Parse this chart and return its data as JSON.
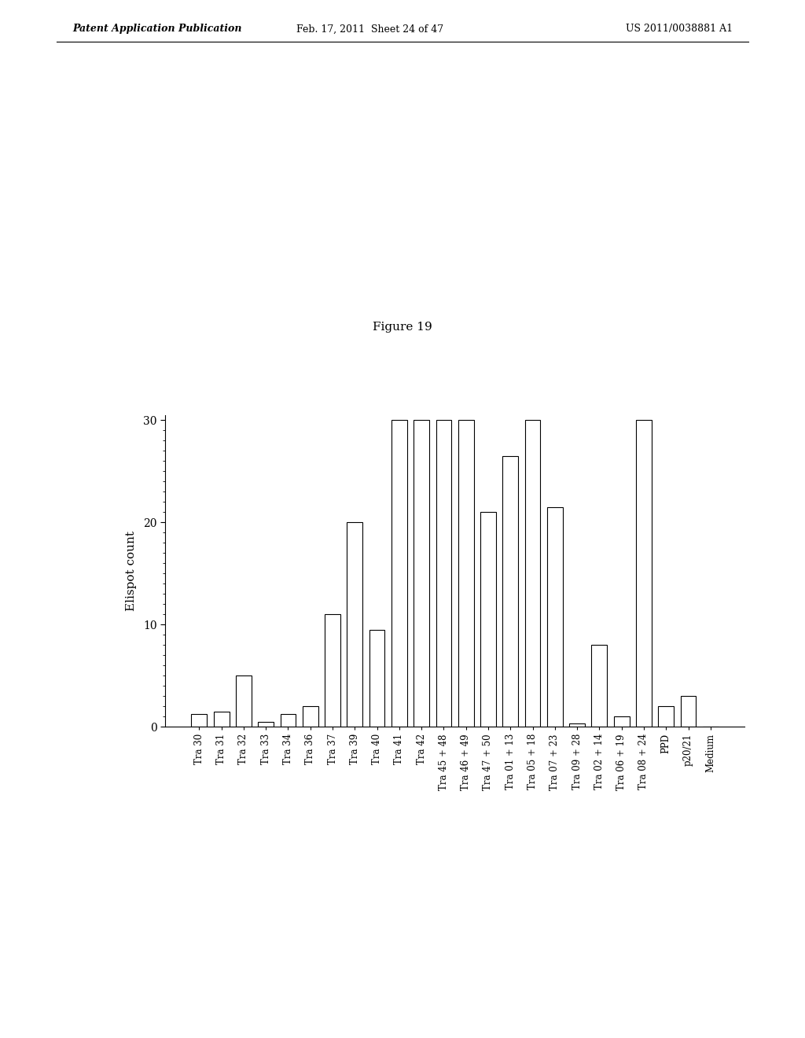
{
  "categories": [
    "Tra 30",
    "Tra 31",
    "Tra 32",
    "Tra 33",
    "Tra 34",
    "Tra 36",
    "Tra 37",
    "Tra 39",
    "Tra 40",
    "Tra 41",
    "Tra 42",
    "Tra 45 + 48",
    "Tra 46 + 49",
    "Tra 47 + 50",
    "Tra 01 + 13",
    "Tra 05 + 18",
    "Tra 07 + 23",
    "Tra 09 + 28",
    "Tra 02 + 14",
    "Tra 06 + 19",
    "Tra 08 + 24",
    "PPD",
    "p20/21",
    "Medium"
  ],
  "values": [
    1.2,
    1.5,
    5.0,
    0.5,
    1.2,
    2.0,
    11.0,
    20.0,
    9.5,
    30.0,
    30.0,
    30.0,
    30.0,
    21.0,
    26.5,
    30.0,
    21.5,
    0.3,
    8.0,
    1.0,
    30.0,
    2.0,
    3.0,
    0.0
  ],
  "ylabel": "Elispot count",
  "title": "Figure 19",
  "ylim": [
    0,
    30
  ],
  "yticks": [
    0,
    10,
    20,
    30
  ],
  "bar_color": "#ffffff",
  "bar_edgecolor": "#000000",
  "background_color": "#ffffff",
  "header_left": "Patent Application Publication",
  "header_mid": "Feb. 17, 2011  Sheet 24 of 47",
  "header_right": "US 2011/0038881 A1",
  "figure_width": 10.24,
  "figure_height": 13.2,
  "dpi": 100
}
